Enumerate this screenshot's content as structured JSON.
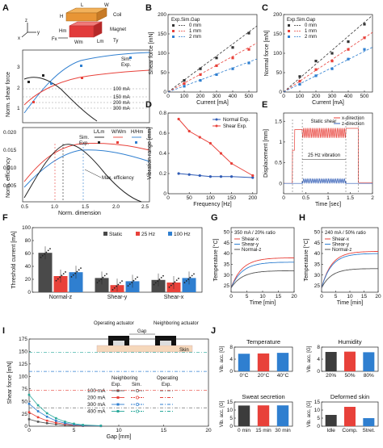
{
  "panels": {
    "A": {
      "label": "A",
      "illus": {
        "L": "L",
        "W": "W",
        "H": "H",
        "Wm": "Wm",
        "Lm": "Lm",
        "Hm": "Hm",
        "Fx": "Fx",
        "Ty": "Ty",
        "coil": "Coil",
        "magnet": "Magnet",
        "axis_x": "x",
        "axis_y": "y",
        "axis_z": "z"
      },
      "top": {
        "ylabel": "Norm. shear force",
        "yticks": [
          "1",
          "2",
          "3"
        ],
        "ylim": [
          0.6,
          3.8
        ],
        "legend_sim": "Sim.",
        "legend_exp": "Exp.",
        "curve_labels": [
          "100 mA",
          "150 mA",
          "200 mA",
          "300 mA"
        ]
      },
      "bottom": {
        "ylabel": "Norm. efficiency",
        "yticks": [
          "0.005",
          "0.010",
          "0.015",
          "0.020"
        ],
        "ylim": [
          0.003,
          0.022
        ],
        "xlabel": "Norm. dimension",
        "xticks": [
          "0.5",
          "1.0",
          "1.5",
          "2.0",
          "2.5"
        ],
        "xlim": [
          0.5,
          2.5
        ],
        "legend_headers": [
          "L/Lm",
          "W/Wm",
          "H/Hm"
        ],
        "legend_sim": "Sim.",
        "legend_exp": "Exp.",
        "annotation": "Max. efficiency"
      },
      "colors": {
        "L": "#000000",
        "W": "#e8413a",
        "H": "#2f7fd0"
      }
    },
    "B": {
      "label": "B"
    },
    "C": {
      "label": "C"
    },
    "D": {
      "label": "D"
    },
    "E": {
      "label": "E"
    },
    "F": {
      "label": "F"
    },
    "G": {
      "label": "G"
    },
    "H": {
      "label": "H"
    },
    "I": {
      "label": "I",
      "illus": {
        "operating": "Operating actuator",
        "neighboring": "Neighboring actuator",
        "gap": "Gap",
        "skin": "Skin"
      },
      "legend_head_neighboring": "Neighboring",
      "legend_head_operating": "Operating",
      "legend_exp": "Exp.",
      "legend_sim": "Sim.",
      "legend_exp2": "Exp."
    },
    "J": {
      "label": "J"
    }
  },
  "chart_data": [
    {
      "id": "B",
      "type": "scatter",
      "xlabel": "Current [mA]",
      "ylabel": "Shear force [mN]",
      "xlim": [
        0,
        550
      ],
      "ylim": [
        0,
        200
      ],
      "xticks": [
        0,
        100,
        200,
        300,
        400,
        500
      ],
      "yticks": [
        0,
        50,
        100,
        150,
        200
      ],
      "legend_header": [
        "Exp.",
        "Sim.",
        "Gap"
      ],
      "series": [
        {
          "name": "0 mm",
          "color": "#333333",
          "x": [
            100,
            200,
            300,
            400,
            500
          ],
          "y": [
            30,
            60,
            88,
            115,
            152
          ],
          "sim_slope": 0.31
        },
        {
          "name": "1 mm",
          "color": "#e8413a",
          "x": [
            100,
            200,
            300,
            400,
            500
          ],
          "y": [
            22,
            45,
            68,
            88,
            110
          ],
          "sim_slope": 0.23
        },
        {
          "name": "2 mm",
          "color": "#2f7fd0",
          "x": [
            100,
            200,
            300,
            400,
            500
          ],
          "y": [
            15,
            30,
            45,
            60,
            75
          ],
          "sim_slope": 0.155
        }
      ]
    },
    {
      "id": "C",
      "type": "scatter",
      "xlabel": "Current [mA]",
      "ylabel": "Normal force [mN]",
      "xlim": [
        0,
        550
      ],
      "ylim": [
        0,
        200
      ],
      "xticks": [
        0,
        100,
        200,
        300,
        400,
        500
      ],
      "yticks": [
        0,
        50,
        100,
        150,
        200
      ],
      "legend_header": [
        "Exp.",
        "Sim.",
        "Gap"
      ],
      "series": [
        {
          "name": "0 mm",
          "color": "#333333",
          "x": [
            100,
            200,
            300,
            400,
            500
          ],
          "y": [
            40,
            80,
            100,
            130,
            175
          ],
          "sim_slope": 0.36
        },
        {
          "name": "1 mm",
          "color": "#e8413a",
          "x": [
            100,
            200,
            300,
            400,
            500
          ],
          "y": [
            28,
            58,
            80,
            110,
            140
          ],
          "sim_slope": 0.28
        },
        {
          "name": "2 mm",
          "color": "#2f7fd0",
          "x": [
            100,
            200,
            300,
            400,
            500
          ],
          "y": [
            20,
            42,
            60,
            85,
            110
          ],
          "sim_slope": 0.21
        }
      ]
    },
    {
      "id": "D",
      "type": "line",
      "xlabel": "Frequency [Hz]",
      "ylabel": "Vibration range [mm]",
      "xlim": [
        0,
        210
      ],
      "ylim": [
        0,
        0.8
      ],
      "xticks": [
        0,
        50,
        100,
        150,
        200
      ],
      "yticks": [
        0.0,
        0.2,
        0.4,
        0.6,
        0.8
      ],
      "series": [
        {
          "name": "Normal Exp.",
          "color": "#2f5bb5",
          "x": [
            25,
            50,
            75,
            100,
            125,
            150,
            200
          ],
          "y": [
            0.2,
            0.19,
            0.18,
            0.17,
            0.17,
            0.17,
            0.16
          ]
        },
        {
          "name": "Shear Exp.",
          "color": "#e8413a",
          "x": [
            25,
            50,
            75,
            100,
            125,
            150,
            200
          ],
          "y": [
            0.74,
            0.62,
            0.56,
            0.5,
            0.4,
            0.3,
            0.18
          ]
        }
      ]
    },
    {
      "id": "E",
      "type": "line",
      "xlabel": "Time [sec]",
      "ylabel": "Displacement [mm]",
      "xlim": [
        0,
        2.0
      ],
      "ylim": [
        -0.25,
        1.7
      ],
      "xticks": [
        0,
        0.5,
        1.0,
        1.5,
        2.0
      ],
      "yticks": [
        0.0,
        0.5,
        1.0,
        1.5
      ],
      "annotations": [
        "Static shear",
        "25 Hz vibration"
      ],
      "series": [
        {
          "name": "x-direction",
          "color": "#e8413a"
        },
        {
          "name": "z-direction",
          "color": "#2f5bb5"
        }
      ]
    },
    {
      "id": "F",
      "type": "bar",
      "ylabel": "Threshold current [mA]",
      "ylim": [
        0,
        100
      ],
      "yticks": [
        0,
        20,
        40,
        60,
        80,
        100
      ],
      "categories": [
        "Normal-z",
        "Shear-y",
        "Shear-x"
      ],
      "series": [
        {
          "name": "Static",
          "color": "#4a4a4a",
          "values": [
            61,
            22,
            19
          ]
        },
        {
          "name": "25 Hz",
          "color": "#e8413a",
          "values": [
            25,
            11,
            15
          ]
        },
        {
          "name": "100 Hz",
          "color": "#2f7fd0",
          "values": [
            31,
            17,
            22
          ]
        }
      ]
    },
    {
      "id": "G",
      "type": "line",
      "title": "350 mA / 20% ratio",
      "xlabel": "Time [min]",
      "ylabel": "Temperature [°C]",
      "xlim": [
        0,
        20
      ],
      "ylim": [
        22,
        52
      ],
      "xticks": [
        0,
        5,
        10,
        15,
        20
      ],
      "yticks": [
        25,
        30,
        35,
        40,
        45,
        50
      ],
      "series": [
        {
          "name": "Shear-x",
          "color": "#e8413a",
          "plateau": 38,
          "start": 24
        },
        {
          "name": "Shear-y",
          "color": "#2f7fd0",
          "plateau": 36,
          "start": 24
        },
        {
          "name": "Normal-z",
          "color": "#555555",
          "plateau": 32,
          "start": 24
        }
      ]
    },
    {
      "id": "H",
      "type": "line",
      "title": "240 mA / 50% ratio",
      "xlabel": "Time [min]",
      "ylabel": "Temperature [°C]",
      "xlim": [
        0,
        20
      ],
      "ylim": [
        22,
        52
      ],
      "xticks": [
        0,
        5,
        10,
        15,
        20
      ],
      "yticks": [
        25,
        30,
        35,
        40,
        45,
        50
      ],
      "series": [
        {
          "name": "Shear-x",
          "color": "#e8413a",
          "plateau": 41,
          "start": 24
        },
        {
          "name": "Shear-y",
          "color": "#2f7fd0",
          "plateau": 40,
          "start": 24
        },
        {
          "name": "Normal-z",
          "color": "#555555",
          "plateau": 33,
          "start": 24
        }
      ]
    },
    {
      "id": "I",
      "type": "line",
      "xlabel": "Gap [mm]",
      "ylabel": "Shear force [mN]",
      "xlim": [
        0,
        20
      ],
      "ylim": [
        0,
        175
      ],
      "xticks": [
        0,
        5,
        10,
        15,
        20
      ],
      "yticks": [
        0,
        25,
        50,
        75,
        100,
        125,
        150,
        175
      ],
      "series": [
        {
          "name": "100 mA",
          "color": "#555555",
          "operating": 37,
          "x": [
            0,
            1,
            2,
            3,
            4,
            5,
            6,
            8
          ],
          "y": [
            14,
            9,
            6,
            4,
            2,
            1,
            0.6,
            0.3
          ]
        },
        {
          "name": "200 mA",
          "color": "#e8413a",
          "operating": 72,
          "x": [
            0,
            1,
            2,
            3,
            4,
            5,
            6,
            8
          ],
          "y": [
            28,
            18,
            11,
            7,
            4,
            2,
            1,
            0.5
          ]
        },
        {
          "name": "300 mA",
          "color": "#2f7fd0",
          "operating": 110,
          "x": [
            0,
            1,
            2,
            3,
            4,
            5,
            6,
            8
          ],
          "y": [
            45,
            30,
            19,
            11,
            6,
            3,
            1.5,
            0.7
          ]
        },
        {
          "name": "400 mA",
          "color": "#28a89a",
          "operating": 148,
          "x": [
            0,
            1,
            2,
            3,
            4,
            5,
            6,
            8
          ],
          "y": [
            63,
            42,
            26,
            16,
            9,
            5,
            2.5,
            1
          ]
        }
      ]
    },
    {
      "id": "J1",
      "type": "bar",
      "title": "Temperature",
      "ylabel": "Vib. acc. [G]",
      "ylim": [
        0,
        8
      ],
      "yticks": [
        0,
        4,
        8
      ],
      "categories": [
        "0°C",
        "20°C",
        "40°C"
      ],
      "values": [
        5.8,
        5.9,
        6.1
      ],
      "colors": [
        "#2f7fd0",
        "#e8413a",
        "#2f7fd0"
      ]
    },
    {
      "id": "J2",
      "type": "bar",
      "title": "Humidity",
      "ylabel": "Vib. acc. [G]",
      "ylim": [
        0,
        8
      ],
      "yticks": [
        0,
        4,
        8
      ],
      "categories": [
        "20%",
        "50%",
        "80%"
      ],
      "values": [
        6.4,
        6.5,
        6.3
      ],
      "colors": [
        "#3c3c3c",
        "#e8413a",
        "#2f7fd0"
      ]
    },
    {
      "id": "J3",
      "type": "bar",
      "title": "Sweat secretion",
      "ylabel": "Vib. acc. [G]",
      "ylim": [
        0,
        15
      ],
      "yticks": [
        0,
        5,
        10,
        15
      ],
      "categories": [
        "0 min",
        "15 min",
        "30 min"
      ],
      "values": [
        12.8,
        12.9,
        12.9
      ],
      "colors": [
        "#3c3c3c",
        "#e8413a",
        "#2f7fd0"
      ]
    },
    {
      "id": "J4",
      "type": "bar",
      "title": "Deformed skin",
      "ylabel": "Vib. acc. [G]",
      "ylim": [
        0,
        15
      ],
      "yticks": [
        0,
        5,
        10,
        15
      ],
      "categories": [
        "Idle",
        "Comp.",
        "Stret."
      ],
      "values": [
        7,
        12,
        5
      ],
      "colors": [
        "#3c3c3c",
        "#e8413a",
        "#2f7fd0"
      ]
    }
  ]
}
